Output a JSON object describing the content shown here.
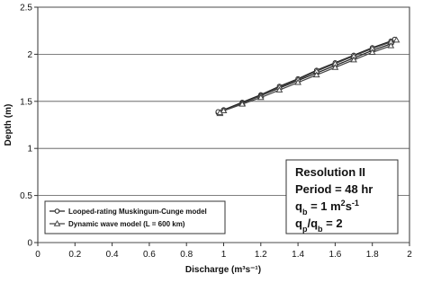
{
  "chart_data": {
    "type": "line",
    "x_label": "Discharge (m³s⁻¹)",
    "y_label": "Depth (m)",
    "xlim": [
      0,
      2
    ],
    "xticks": [
      0,
      0.2,
      0.4,
      0.6,
      0.8,
      1,
      1.2,
      1.4,
      1.6,
      1.8,
      2
    ],
    "ylim": [
      0,
      2.5
    ],
    "yticks": [
      0,
      0.5,
      1,
      1.5,
      2,
      2.5
    ],
    "grid": true,
    "legend": "lower-left",
    "series": [
      {
        "name": "Looped-rating Muskingum-Cunge model",
        "color": "#222222",
        "marker": "circle",
        "x": [
          0.97,
          1.0,
          1.1,
          1.2,
          1.3,
          1.4,
          1.5,
          1.6,
          1.7,
          1.8,
          1.9,
          1.92,
          1.9,
          1.8,
          1.7,
          1.6,
          1.5,
          1.4,
          1.3,
          1.2,
          1.1,
          1.0,
          0.97
        ],
        "values": [
          1.38,
          1.41,
          1.49,
          1.57,
          1.66,
          1.74,
          1.83,
          1.91,
          1.99,
          2.07,
          2.14,
          2.16,
          2.11,
          2.04,
          1.96,
          1.88,
          1.8,
          1.72,
          1.64,
          1.56,
          1.48,
          1.41,
          1.39
        ]
      },
      {
        "name": "Dynamic wave model (L = 600 km)",
        "color": "#444444",
        "marker": "triangle",
        "x": [
          0.98,
          1.0,
          1.1,
          1.2,
          1.3,
          1.4,
          1.5,
          1.6,
          1.7,
          1.8,
          1.9,
          1.93,
          1.9,
          1.8,
          1.7,
          1.6,
          1.5,
          1.4,
          1.3,
          1.2,
          1.1,
          1.0,
          0.98
        ],
        "values": [
          1.37,
          1.4,
          1.48,
          1.56,
          1.65,
          1.73,
          1.82,
          1.9,
          1.98,
          2.06,
          2.13,
          2.15,
          2.09,
          2.02,
          1.94,
          1.86,
          1.78,
          1.7,
          1.62,
          1.54,
          1.47,
          1.4,
          1.38
        ]
      }
    ],
    "annotation": [
      [
        {
          "text": "Resolution II"
        }
      ],
      [
        {
          "text": "Period = 48 hr"
        }
      ],
      [
        {
          "text": "q"
        },
        {
          "text": "b",
          "style": "sub"
        },
        {
          "text": " = 1 m"
        },
        {
          "text": "2",
          "style": "sup"
        },
        {
          "text": "s"
        },
        {
          "text": "-1",
          "style": "sup"
        }
      ],
      [
        {
          "text": "q"
        },
        {
          "text": "p",
          "style": "sub"
        },
        {
          "text": "/q"
        },
        {
          "text": "b",
          "style": "sub"
        },
        {
          "text": " = 2"
        }
      ]
    ]
  }
}
